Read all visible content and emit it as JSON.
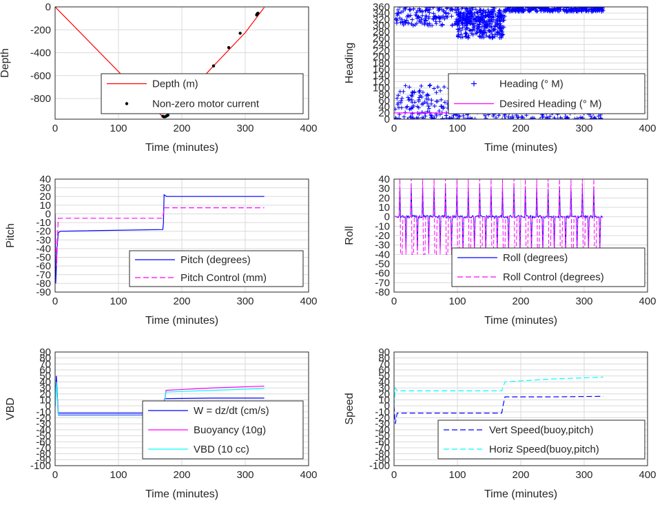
{
  "figure": {
    "background": "#ffffff",
    "grid_color": "#d9d9d9",
    "axis_color": "#262626"
  },
  "chart_data": [
    {
      "id": "depth",
      "type": "line",
      "xlabel": "Time (minutes)",
      "ylabel": "Depth",
      "xlim": [
        0,
        400
      ],
      "ylim": [
        -980,
        0
      ],
      "xticks": [
        0,
        100,
        200,
        300,
        400
      ],
      "yticks": [
        0,
        -200,
        -400,
        -600,
        -800
      ],
      "grid": true,
      "legend_placement": "bottom-center",
      "series": [
        {
          "name": "Depth (m)",
          "kind": "line",
          "color": "#ff0000",
          "x": [
            0,
            170,
            176,
            250,
            300,
            330
          ],
          "y": [
            0,
            -960,
            -955,
            -515,
            -225,
            -5
          ]
        },
        {
          "name": "Non-zero motor current",
          "kind": "scatter",
          "color": "#000000",
          "x": [
            170,
            172,
            174,
            176,
            178,
            250,
            274,
            292,
            318,
            319,
            320
          ],
          "y": [
            -955,
            -960,
            -958,
            -952,
            -945,
            -515,
            -355,
            -230,
            -70,
            -60,
            -55
          ]
        }
      ]
    },
    {
      "id": "heading",
      "type": "scatter",
      "xlabel": "Time (minutes)",
      "ylabel": "Heading",
      "xlim": [
        0,
        400
      ],
      "ylim": [
        0,
        360
      ],
      "xticks": [
        0,
        100,
        200,
        300,
        400
      ],
      "yticks": [
        0,
        20,
        40,
        60,
        80,
        100,
        120,
        140,
        160,
        180,
        200,
        220,
        240,
        260,
        280,
        300,
        320,
        340,
        360
      ],
      "grid": true,
      "legend_placement": "bottom-right",
      "series": [
        {
          "name": "Heading (° M)",
          "kind": "plus",
          "color": "#0000ff",
          "bands": [
            {
              "x": [
                2,
                170
              ],
              "y": [
                300,
                360
              ]
            },
            {
              "x": [
                100,
                175
              ],
              "y": [
                260,
                350
              ]
            },
            {
              "x": [
                175,
                330
              ],
              "y": [
                345,
                360
              ]
            },
            {
              "x": [
                2,
                330
              ],
              "y": [
                0,
                110
              ]
            }
          ]
        },
        {
          "name": "Desired Heading (° M)",
          "kind": "line",
          "color": "#ff00ff",
          "x": [
            0,
            330
          ],
          "y": [
            20,
            20
          ]
        }
      ]
    },
    {
      "id": "pitch",
      "type": "line",
      "xlabel": "Time (minutes)",
      "ylabel": "Pitch",
      "xlim": [
        0,
        400
      ],
      "ylim": [
        -90,
        40
      ],
      "xticks": [
        0,
        100,
        200,
        300,
        400
      ],
      "yticks": [
        40,
        30,
        20,
        10,
        0,
        -10,
        -20,
        -30,
        -40,
        -50,
        -60,
        -70,
        -80,
        -90
      ],
      "grid": true,
      "legend_placement": "bottom-right",
      "series": [
        {
          "name": "Pitch (degrees)",
          "kind": "line",
          "color": "#0000ff",
          "x": [
            0,
            1,
            3,
            5,
            8,
            170,
            171,
            172,
            176,
            250,
            330
          ],
          "y": [
            0,
            -80,
            -40,
            -22,
            -20,
            -18,
            -10,
            22,
            20,
            20,
            20
          ]
        },
        {
          "name": "Pitch Control (mm)",
          "kind": "dashed",
          "color": "#ff00ff",
          "x": [
            0,
            2,
            5,
            10,
            170,
            172,
            330
          ],
          "y": [
            0,
            -60,
            -5,
            -5,
            -5,
            7,
            7
          ]
        }
      ]
    },
    {
      "id": "roll",
      "type": "line",
      "xlabel": "Time (minutes)",
      "ylabel": "Roll",
      "xlim": [
        0,
        400
      ],
      "ylim": [
        -80,
        40
      ],
      "xticks": [
        0,
        100,
        200,
        300,
        400
      ],
      "yticks": [
        40,
        30,
        20,
        10,
        0,
        -10,
        -20,
        -30,
        -40,
        -50,
        -60,
        -70,
        -80
      ],
      "grid": true,
      "legend_placement": "bottom-right",
      "series": [
        {
          "name": "Roll (degrees)",
          "kind": "line",
          "color": "#0000ff",
          "x": [
            0,
            330
          ],
          "y": [
            0,
            0
          ]
        },
        {
          "name": "Roll Control (degrees)",
          "kind": "dashed",
          "color": "#ff00ff",
          "x": [
            0,
            330
          ],
          "y": [
            0,
            0
          ]
        }
      ]
    },
    {
      "id": "vbd",
      "type": "line",
      "xlabel": "Time (minutes)",
      "ylabel": "VBD",
      "xlim": [
        0,
        400
      ],
      "ylim": [
        -100,
        90
      ],
      "xticks": [
        0,
        100,
        200,
        300,
        400
      ],
      "yticks": [
        90,
        80,
        70,
        60,
        50,
        40,
        30,
        20,
        10,
        0,
        -10,
        -20,
        -30,
        -40,
        -50,
        -60,
        -70,
        -80,
        -90,
        -100
      ],
      "grid": true,
      "legend_placement": "bottom-right",
      "series": [
        {
          "name": "W = dz/dt (cm/s)",
          "kind": "line",
          "color": "#0000ff",
          "x": [
            0,
            2,
            5,
            170,
            173,
            250,
            330
          ],
          "y": [
            0,
            50,
            -12,
            -12,
            12,
            13,
            13
          ]
        },
        {
          "name": "Buoyancy (10g)",
          "kind": "line",
          "color": "#ff00ff",
          "x": [
            0,
            2,
            5,
            170,
            175,
            250,
            330
          ],
          "y": [
            0,
            40,
            -15,
            -15,
            26,
            30,
            33
          ]
        },
        {
          "name": "VBD (10 cc)",
          "kind": "line",
          "color": "#00ffff",
          "x": [
            0,
            2,
            5,
            170,
            175,
            250,
            330
          ],
          "y": [
            0,
            40,
            -16,
            -16,
            23,
            26,
            29
          ]
        }
      ]
    },
    {
      "id": "speed",
      "type": "line",
      "xlabel": "Time (minutes)",
      "ylabel": "Speed",
      "xlim": [
        0,
        400
      ],
      "ylim": [
        -100,
        90
      ],
      "xticks": [
        0,
        100,
        200,
        300,
        400
      ],
      "yticks": [
        90,
        80,
        70,
        60,
        50,
        40,
        30,
        20,
        10,
        0,
        -10,
        -20,
        -30,
        -40,
        -50,
        -60,
        -70,
        -80,
        -90,
        -100
      ],
      "grid": true,
      "legend_placement": "bottom-right",
      "series": [
        {
          "name": "Vert Speed(buoy,pitch)",
          "kind": "dashed",
          "color": "#0000ff",
          "x": [
            0,
            2,
            5,
            170,
            172,
            175,
            250,
            330
          ],
          "y": [
            0,
            -30,
            -12,
            -12,
            0,
            15,
            15,
            16
          ]
        },
        {
          "name": "Horiz Speed(buoy,pitch)",
          "kind": "dashed",
          "color": "#00ffff",
          "x": [
            0,
            2,
            5,
            170,
            175,
            250,
            330
          ],
          "y": [
            0,
            30,
            25,
            25,
            40,
            45,
            48
          ]
        }
      ]
    }
  ]
}
